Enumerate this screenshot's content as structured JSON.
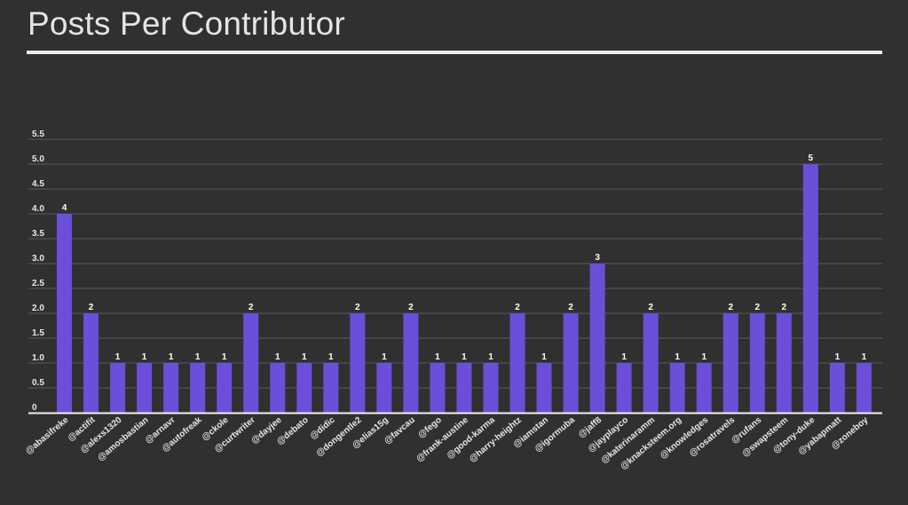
{
  "page": {
    "title": "Posts Per Contributor"
  },
  "colors": {
    "background": "#303030",
    "bar": "#6b4fd8",
    "grid": "#5a5a5a",
    "axis": "#f0f0f0",
    "text": "#e6e6e6"
  },
  "chart_data": {
    "type": "bar",
    "title": "Posts Per Contributor",
    "xlabel": "",
    "ylabel": "",
    "ylim": [
      0,
      5.5
    ],
    "yticks": [
      0,
      0.5,
      1.0,
      1.5,
      2.0,
      2.5,
      3.0,
      3.5,
      4.0,
      4.5,
      5.0,
      5.5
    ],
    "ytick_labels": [
      "0",
      "0.5",
      "1.0",
      "1.5",
      "2.0",
      "2.5",
      "3.0",
      "3.5",
      "4.0",
      "4.5",
      "5.0",
      "5.5"
    ],
    "grid": true,
    "legend": "none",
    "categories": [
      "@abasifreke",
      "@actifit",
      "@alexs1320",
      "@amosbastian",
      "@arnavr",
      "@autofreak",
      "@ckole",
      "@curtwriter",
      "@dayjee",
      "@debato",
      "@didic",
      "@dongentle2",
      "@elias15g",
      "@favcau",
      "@fego",
      "@frank-austine",
      "@good-karma",
      "@harry-heightz",
      "@iamstan",
      "@igormuba",
      "@jaff8",
      "@jayplayco",
      "@katerinaramm",
      "@knacksteem.org",
      "@knowledges",
      "@rosatravels",
      "@rufans",
      "@swapsteem",
      "@tony-duke",
      "@yabapmatt",
      "@zoneboy"
    ],
    "values": [
      4,
      2,
      1,
      1,
      1,
      1,
      1,
      2,
      1,
      1,
      1,
      2,
      1,
      2,
      1,
      1,
      1,
      2,
      1,
      2,
      3,
      1,
      2,
      1,
      1,
      2,
      2,
      2,
      5,
      1,
      1
    ],
    "data_labels": [
      "4",
      "2",
      "1",
      "1",
      "1",
      "1",
      "1",
      "2",
      "1",
      "1",
      "1",
      "2",
      "1",
      "2",
      "1",
      "1",
      "1",
      "2",
      "1",
      "2",
      "3",
      "1",
      "2",
      "1",
      "1",
      "2",
      "2",
      "2",
      "5",
      "1",
      "1"
    ]
  }
}
